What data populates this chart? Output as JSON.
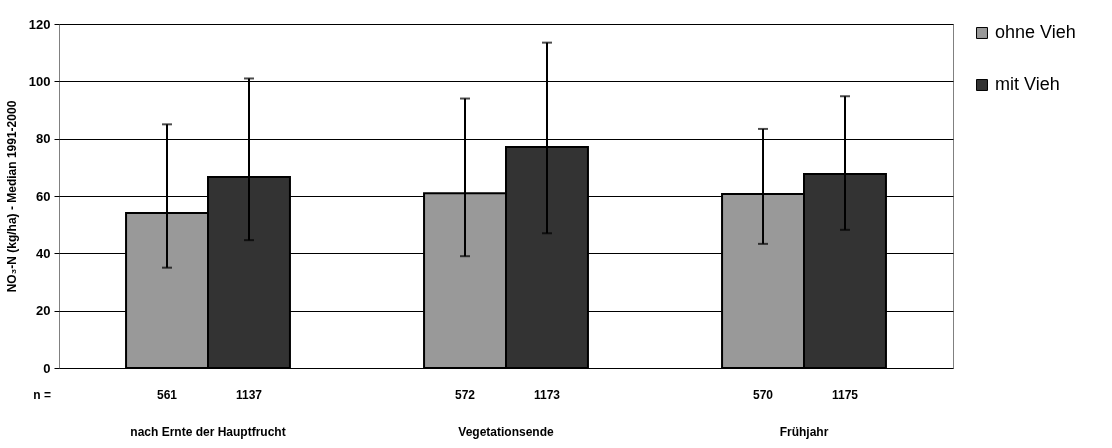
{
  "chart_data": {
    "type": "bar",
    "ylabel": "NO₃-N (kg/ha) - Median 1991-2000",
    "categories": [
      "nach Ernte der Hauptfrucht",
      "Vegetationsende",
      "Frühjahr"
    ],
    "series": [
      {
        "name": "ohne Vieh",
        "color": "#999999",
        "values": [
          54.1,
          61.0,
          60.7
        ],
        "errors": [
          [
            35,
            85
          ],
          [
            39,
            94
          ],
          [
            43.3,
            83.4
          ]
        ]
      },
      {
        "name": "mit Vieh",
        "color": "#333333",
        "values": [
          66.6,
          77.1,
          67.7
        ],
        "errors": [
          [
            44.6,
            101
          ],
          [
            47,
            113.5
          ],
          [
            48.2,
            94.8
          ]
        ]
      }
    ],
    "ylim": [
      0,
      120
    ],
    "yticks": [
      0,
      20,
      40,
      60,
      80,
      100,
      120
    ],
    "grid": "y",
    "legend": "right",
    "annotations": [
      "n =",
      "561",
      "1137",
      "572",
      "1173",
      "570",
      "1175"
    ]
  }
}
